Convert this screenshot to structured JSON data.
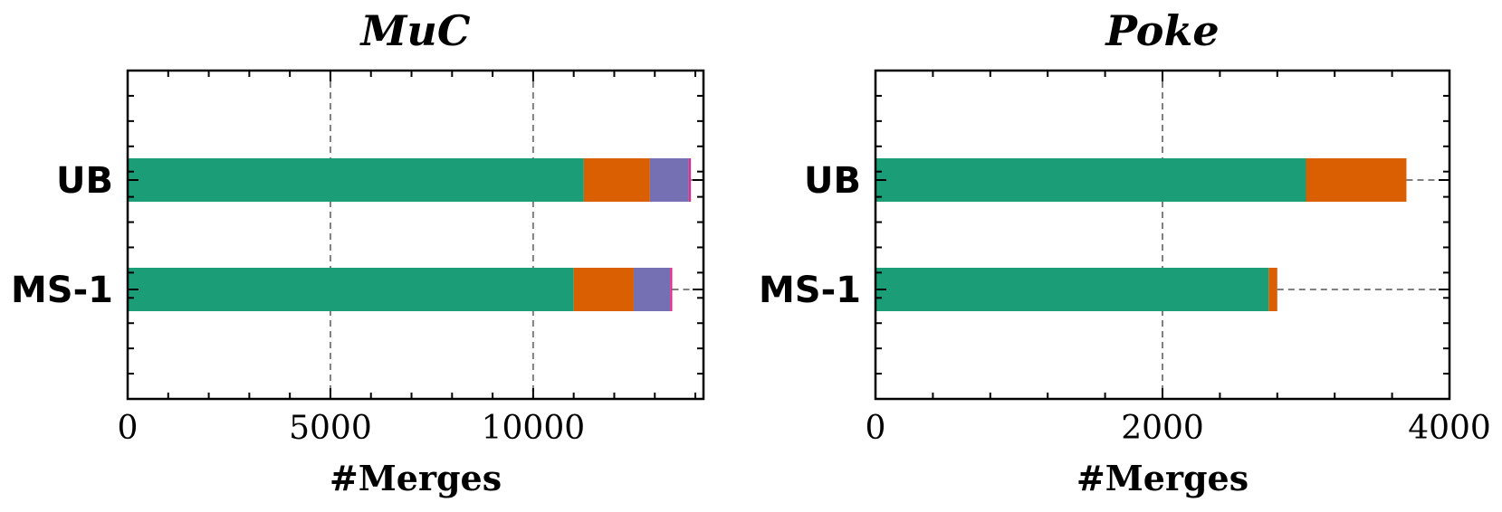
{
  "chart_data": [
    {
      "type": "bar",
      "orientation": "horizontal",
      "stacked": true,
      "title": "MuC",
      "xlabel": "#Merges",
      "ylabel": "",
      "xlim": [
        0,
        14200
      ],
      "x_ticks": [
        0,
        5000,
        10000
      ],
      "x_tick_labels": [
        "0",
        "5000",
        "10000"
      ],
      "grid": "x-dashed",
      "categories": [
        "UB",
        "MS-1"
      ],
      "series": [
        {
          "values": [
            11250,
            11000
          ],
          "color": "#1b9e77"
        },
        {
          "values": [
            1630,
            1480
          ],
          "color": "#d95f02"
        },
        {
          "values": [
            960,
            900
          ],
          "color": "#7570b3"
        },
        {
          "values": [
            50,
            50
          ],
          "color": "#e7298a"
        }
      ],
      "totals": [
        13890,
        13430
      ]
    },
    {
      "type": "bar",
      "orientation": "horizontal",
      "stacked": true,
      "title": "Poke",
      "xlabel": "#Merges",
      "ylabel": "",
      "xlim": [
        0,
        4000
      ],
      "x_ticks": [
        0,
        2000,
        4000
      ],
      "x_tick_labels": [
        "0",
        "2000",
        "4000"
      ],
      "grid": "x-dashed",
      "categories": [
        "UB",
        "MS-1"
      ],
      "series": [
        {
          "values": [
            3000,
            2740
          ],
          "color": "#1b9e77"
        },
        {
          "values": [
            700,
            60
          ],
          "color": "#d95f02"
        },
        {
          "values": [
            0,
            0
          ],
          "color": "#7570b3"
        },
        {
          "values": [
            0,
            0
          ],
          "color": "#e7298a"
        }
      ],
      "totals": [
        3700,
        2800
      ]
    }
  ]
}
